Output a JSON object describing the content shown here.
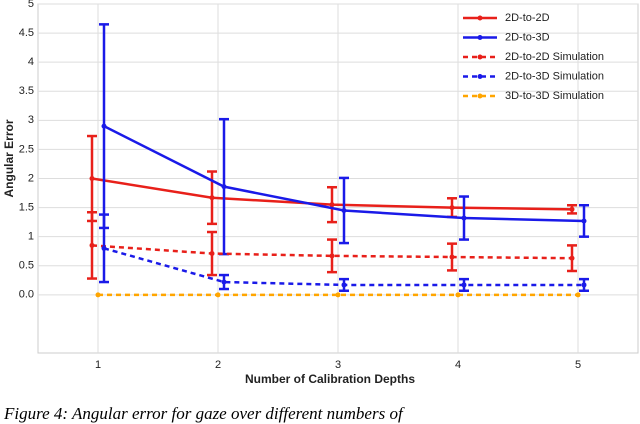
{
  "chart_data": {
    "type": "errorbar-line",
    "xlabel": "Number of Calibration Depths",
    "ylabel": "Angular Error",
    "xlim": [
      0.5,
      5.5
    ],
    "ylim": [
      -1,
      5
    ],
    "xticks": [
      1,
      2,
      3,
      4,
      5
    ],
    "yticks": [
      {
        "value": 0,
        "label": "0.0"
      },
      0.5,
      1,
      1.5,
      2,
      2.5,
      3,
      3.5,
      4,
      4.5,
      5
    ],
    "grid": true,
    "legend": "upper right",
    "series": [
      {
        "name": "2D-to-2D",
        "color": "#e8201a",
        "dashed": false,
        "x": [
          0.95,
          1.95,
          2.95,
          3.95,
          4.95
        ],
        "values": [
          2.0,
          1.67,
          1.55,
          1.5,
          1.47
        ],
        "errors": [
          0.73,
          0.45,
          0.3,
          0.16,
          0.07
        ]
      },
      {
        "name": "2D-to-3D",
        "color": "#1a1ae8",
        "dashed": false,
        "x": [
          1.05,
          2.05,
          3.05,
          4.05,
          5.05
        ],
        "values": [
          2.9,
          1.86,
          1.45,
          1.32,
          1.27
        ],
        "errors": [
          1.75,
          1.16,
          0.56,
          0.37,
          0.27
        ]
      },
      {
        "name": "2D-to-2D Simulation",
        "color": "#e8201a",
        "dashed": true,
        "x": [
          0.95,
          1.95,
          2.95,
          3.95,
          4.95
        ],
        "values": [
          0.85,
          0.71,
          0.67,
          0.65,
          0.63
        ],
        "errors": [
          0.57,
          0.37,
          0.28,
          0.23,
          0.22
        ]
      },
      {
        "name": "2D-to-3D Simulation",
        "color": "#1a1ae8",
        "dashed": true,
        "x": [
          1.05,
          2.05,
          3.05,
          4.05,
          5.05
        ],
        "values": [
          0.8,
          0.22,
          0.17,
          0.17,
          0.17
        ],
        "errors": [
          0.58,
          0.12,
          0.1,
          0.1,
          0.1
        ]
      },
      {
        "name": "3D-to-3D Simulation",
        "color": "#ffa500",
        "dashed": true,
        "x": [
          1,
          2,
          3,
          4,
          5
        ],
        "values": [
          0,
          0,
          0,
          0,
          0
        ]
      }
    ]
  },
  "caption": "Figure 4: Angular error for gaze over different numbers of"
}
